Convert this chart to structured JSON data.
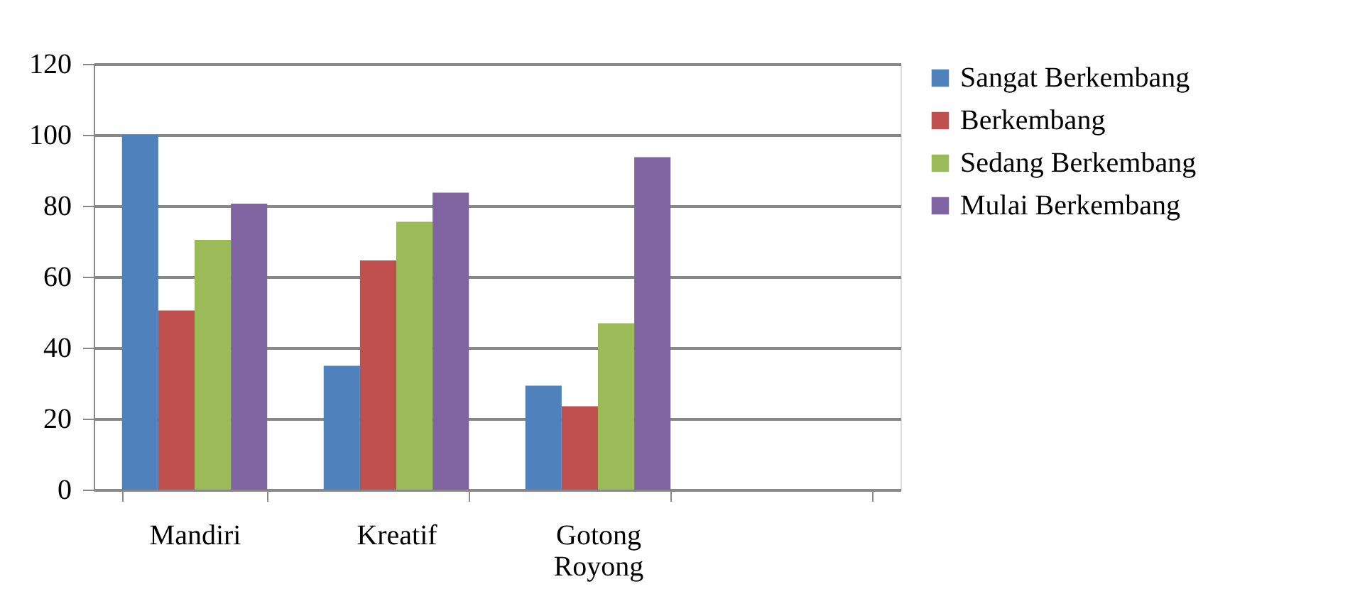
{
  "chart_data": {
    "type": "bar",
    "categories": [
      "Mandiri",
      "Kreatif",
      "Gotong Royong",
      null
    ],
    "series": [
      {
        "name": "Sangat Berkembang",
        "color": "#4f81bd",
        "values": [
          100,
          34.9,
          29.3,
          null
        ]
      },
      {
        "name": "Berkembang",
        "color": "#c0504d",
        "values": [
          50.5,
          64.6,
          23.5,
          null
        ]
      },
      {
        "name": "Sedang Berkembang",
        "color": "#9bbb59",
        "values": [
          70.4,
          75.5,
          46.9,
          null
        ]
      },
      {
        "name": "Mulai Berkembang",
        "color": "#8064a2",
        "values": [
          80.6,
          83.7,
          93.7,
          null
        ]
      }
    ],
    "ylim": [
      0,
      120
    ],
    "yticks": [
      0,
      20,
      40,
      60,
      80,
      100,
      120
    ],
    "grid": "y",
    "legend": "right"
  }
}
